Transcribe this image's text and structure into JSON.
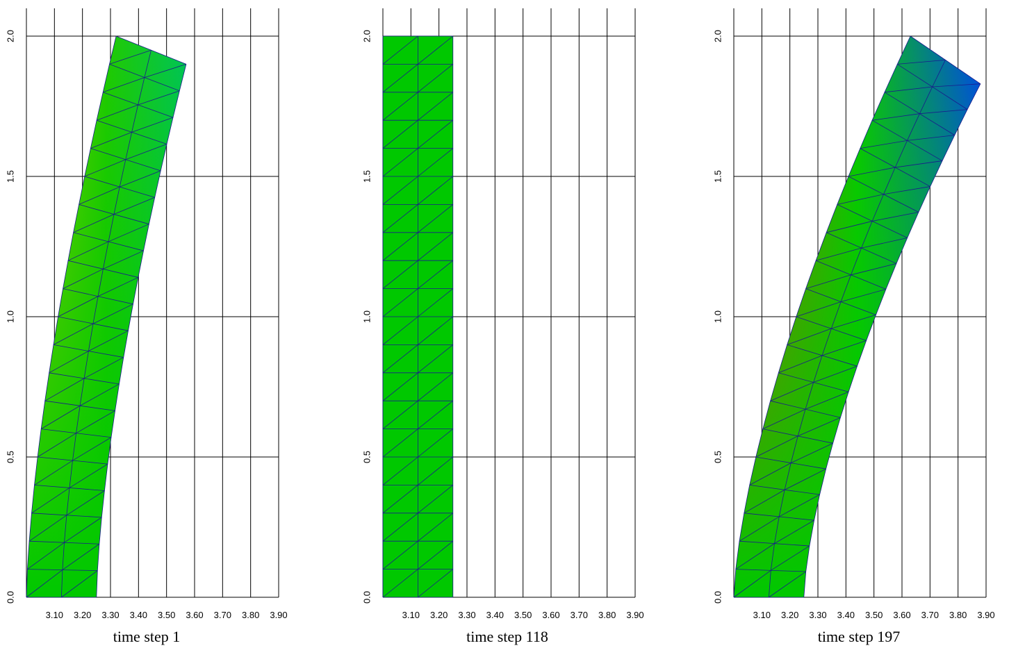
{
  "figure": {
    "panels": [
      {
        "caption": "time step 1"
      },
      {
        "caption": "time step 118"
      },
      {
        "caption": "time step 197"
      }
    ]
  },
  "chart_data": [
    {
      "type": "mesh",
      "title": "time step 1",
      "x_ticks": [
        "3.10",
        "3.20",
        "3.30",
        "3.40",
        "3.50",
        "3.60",
        "3.70",
        "3.80",
        "3.90"
      ],
      "y_ticks": [
        "0.0",
        "0.5",
        "1.0",
        "1.5",
        "2.0"
      ],
      "xlim": [
        3.0,
        3.9
      ],
      "ylim": [
        0.0,
        2.1
      ],
      "grid": true,
      "mesh": {
        "columns": 2,
        "rows": 20,
        "width": 0.25
      },
      "deformation": {
        "shift_top": 0.32,
        "curve_exponent": 1.5,
        "tilt": 0.1
      },
      "colormap": "jet",
      "color_values": {
        "left_top": 0.64,
        "right_top": 0.42,
        "left_bottom": 0.5,
        "right_bottom": 0.5
      }
    },
    {
      "type": "mesh",
      "title": "time step 118",
      "x_ticks": [
        "3.10",
        "3.20",
        "3.30",
        "3.40",
        "3.50",
        "3.60",
        "3.70",
        "3.80",
        "3.90"
      ],
      "y_ticks": [
        "0.0",
        "0.5",
        "1.0",
        "1.5",
        "2.0"
      ],
      "xlim": [
        3.0,
        3.9
      ],
      "ylim": [
        0.0,
        2.1
      ],
      "grid": true,
      "mesh": {
        "columns": 2,
        "rows": 20,
        "width": 0.25
      },
      "deformation": {
        "shift_top": 0.0,
        "curve_exponent": 1.5,
        "tilt": 0.0
      },
      "colormap": "jet",
      "color_values": {
        "left_top": 0.5,
        "right_top": 0.5,
        "left_bottom": 0.5,
        "right_bottom": 0.5
      }
    },
    {
      "type": "mesh",
      "title": "time step 197",
      "x_ticks": [
        "3.10",
        "3.20",
        "3.30",
        "3.40",
        "3.50",
        "3.60",
        "3.70",
        "3.80",
        "3.90"
      ],
      "y_ticks": [
        "0.0",
        "0.5",
        "1.0",
        "1.5",
        "2.0"
      ],
      "xlim": [
        3.0,
        3.9
      ],
      "ylim": [
        0.0,
        2.1
      ],
      "grid": true,
      "mesh": {
        "columns": 2,
        "rows": 20,
        "width": 0.25
      },
      "deformation": {
        "shift_top": 0.63,
        "curve_exponent": 1.5,
        "tilt": 0.17
      },
      "colormap": "jet",
      "color_values": {
        "left_top": 0.9,
        "right_top": 0.12,
        "left_bottom": 0.5,
        "right_bottom": 0.5
      }
    }
  ]
}
